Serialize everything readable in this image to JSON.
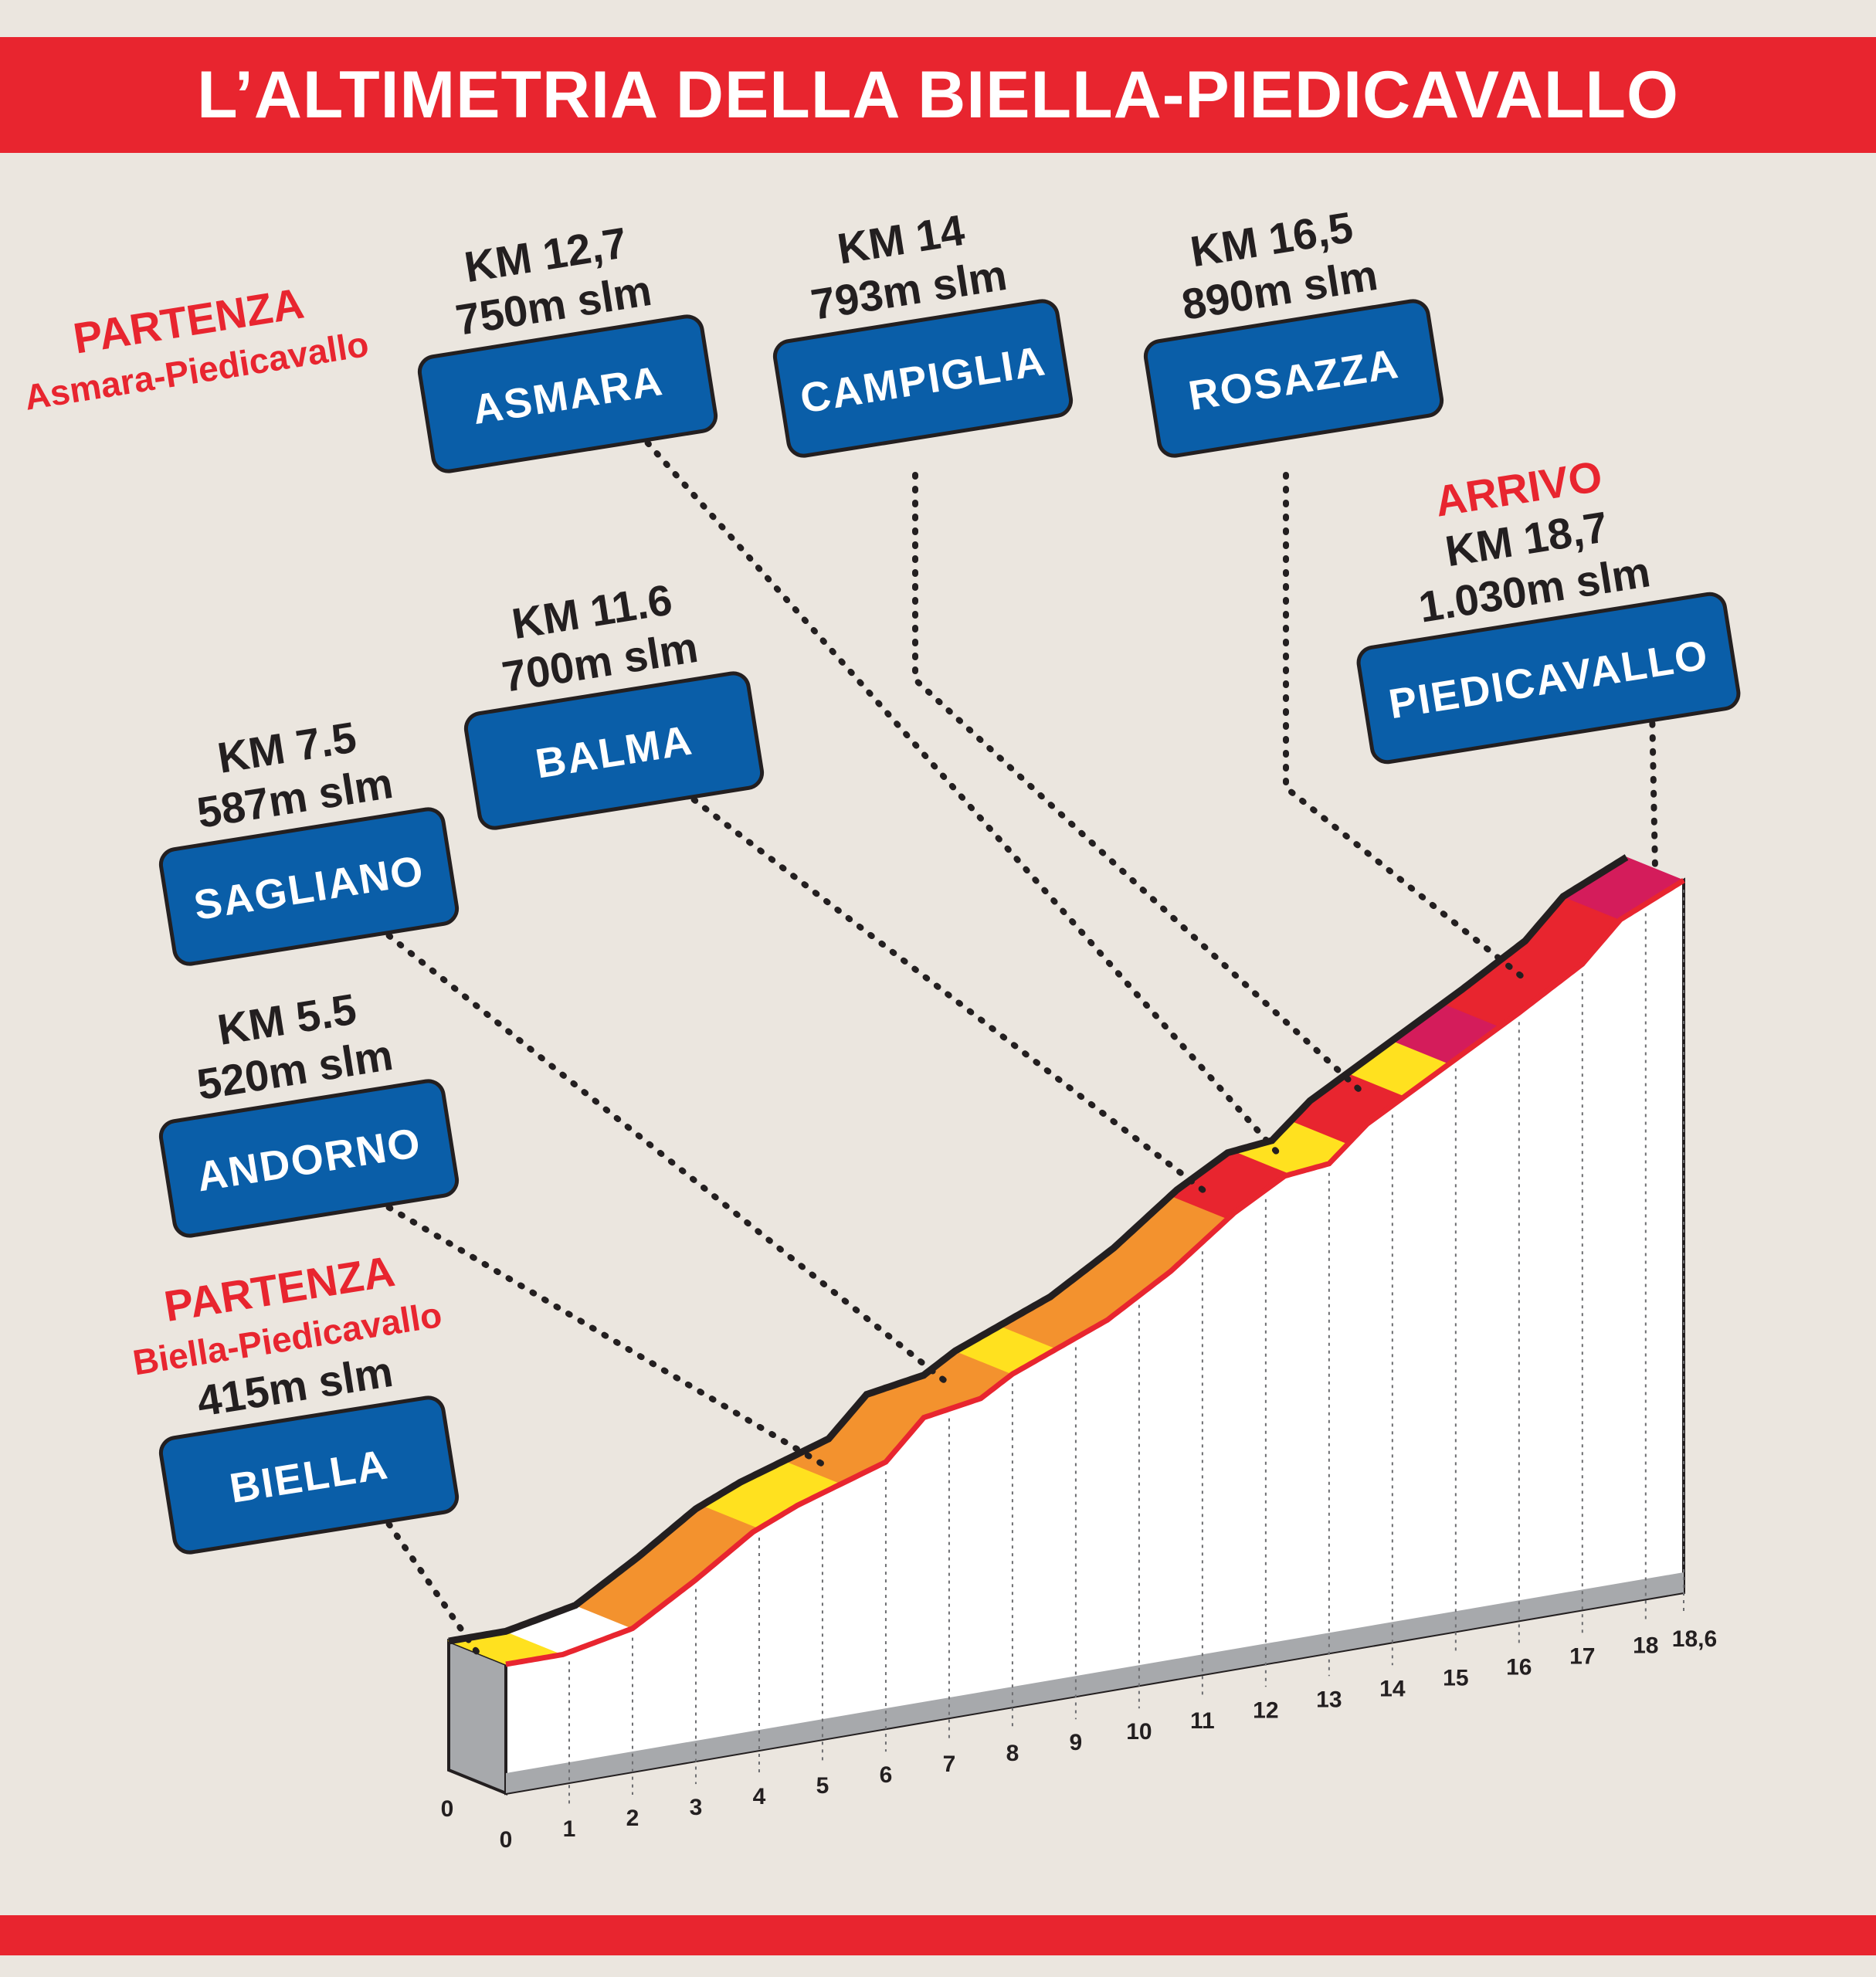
{
  "title": "L’ALTIMETRIA DELLA BIELLA-PIEDICAVALLO",
  "colors": {
    "band_red": "#e8252f",
    "label_blue": "#0a5ea8",
    "text_red": "#e8252f",
    "slope_yellow": "#ffe11f",
    "slope_orange": "#f3922e",
    "slope_red": "#e8252f",
    "slope_magenta": "#d41c5b",
    "slope_white": "#ffffff",
    "side_gray": "#a7a9ac"
  },
  "chart_data": {
    "type": "area",
    "title": "L’ALTIMETRIA DELLA BIELLA-PIEDICAVALLO",
    "xlabel": "",
    "ylabel": "",
    "xlim": [
      0,
      18.6
    ],
    "x_ticks": [
      "0",
      "1",
      "2",
      "3",
      "4",
      "5",
      "6",
      "7",
      "8",
      "9",
      "10",
      "11",
      "12",
      "13",
      "14",
      "15",
      "16",
      "17",
      "18",
      "18,6"
    ],
    "front_tick": "0",
    "profile": {
      "x": [
        0,
        0.9,
        2.0,
        3.0,
        3.9,
        4.6,
        6.0,
        6.6,
        7.5,
        8.0,
        9.5,
        10.5,
        11.5,
        12.3,
        13.0,
        13.6,
        14.4,
        16.0,
        17.0,
        17.6,
        18.6
      ],
      "y": [
        415,
        415,
        430,
        470,
        510,
        530,
        560,
        600,
        610,
        630,
        670,
        710,
        760,
        790,
        795,
        830,
        860,
        920,
        960,
        1000,
        1030
      ]
    },
    "gradient_segments": [
      {
        "from": 0.0,
        "to": 0.9,
        "color": "yellow"
      },
      {
        "from": 0.9,
        "to": 2.0,
        "color": "white"
      },
      {
        "from": 2.0,
        "to": 4.0,
        "color": "orange"
      },
      {
        "from": 4.0,
        "to": 5.3,
        "color": "yellow"
      },
      {
        "from": 5.3,
        "to": 8.0,
        "color": "orange"
      },
      {
        "from": 8.0,
        "to": 8.7,
        "color": "yellow"
      },
      {
        "from": 8.7,
        "to": 11.4,
        "color": "orange"
      },
      {
        "from": 11.4,
        "to": 12.4,
        "color": "red"
      },
      {
        "from": 12.4,
        "to": 13.3,
        "color": "yellow"
      },
      {
        "from": 13.3,
        "to": 14.2,
        "color": "red"
      },
      {
        "from": 14.2,
        "to": 14.9,
        "color": "yellow"
      },
      {
        "from": 14.9,
        "to": 15.7,
        "color": "magenta"
      },
      {
        "from": 15.7,
        "to": 17.6,
        "color": "red"
      },
      {
        "from": 17.6,
        "to": 18.6,
        "color": "magenta"
      }
    ],
    "places": [
      {
        "name": "BIELLA",
        "km": 0,
        "extra": [
          "PARTENZA",
          "Biella-Piedicavallo"
        ],
        "info": [
          "415m slm"
        ]
      },
      {
        "name": "ANDORNO",
        "km": 5.5,
        "extra": [],
        "info": [
          "KM 5.5",
          "520m slm"
        ]
      },
      {
        "name": "SAGLIANO",
        "km": 7.5,
        "extra": [],
        "info": [
          "KM 7.5",
          "587m slm"
        ]
      },
      {
        "name": "BALMA",
        "km": 11.6,
        "extra": [],
        "info": [
          "KM 11.6",
          "700m slm"
        ]
      },
      {
        "name": "ASMARA",
        "km": 12.7,
        "extra": [
          "PARTENZA",
          "Asmara-Piedicavallo"
        ],
        "info": [
          "KM 12,7",
          "750m slm"
        ]
      },
      {
        "name": "CAMPIGLIA",
        "km": 14,
        "extra": [],
        "info": [
          "KM 14",
          "793m slm"
        ]
      },
      {
        "name": "ROSAZZA",
        "km": 16.5,
        "extra": [],
        "info": [
          "KM 16,5",
          "890m slm"
        ]
      },
      {
        "name": "PIEDICAVALLO",
        "km": 18.7,
        "extra": [
          "ARRIVO"
        ],
        "info": [
          "KM 18,7",
          "1.030m slm"
        ]
      }
    ]
  }
}
